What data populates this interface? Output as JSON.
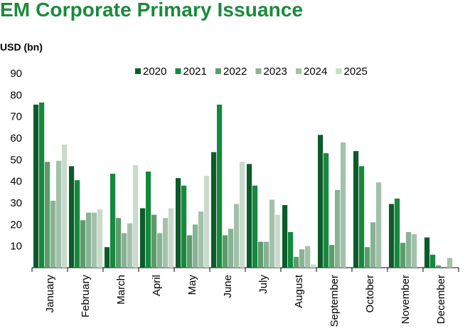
{
  "chart_data": {
    "type": "bar",
    "title": "EM Corporate Primary Issuance",
    "ylabel": "USD (bn)",
    "xlabel": "",
    "ylim": [
      0,
      90
    ],
    "yticks": [
      10,
      20,
      30,
      40,
      50,
      60,
      70,
      80,
      90
    ],
    "grid": false,
    "legend_position": "top-right",
    "categories": [
      "January",
      "February",
      "March",
      "April",
      "May",
      "June",
      "July",
      "August",
      "September",
      "October",
      "November",
      "December"
    ],
    "series": [
      {
        "name": "2020",
        "color": "#0d5a2a",
        "values": [
          75.5,
          47,
          9.5,
          27.5,
          41.5,
          53.5,
          48,
          29,
          61.5,
          54,
          29.5,
          14
        ]
      },
      {
        "name": "2021",
        "color": "#15893e",
        "values": [
          76.5,
          40.5,
          43.5,
          44.5,
          38,
          75.5,
          38,
          16.5,
          53,
          47,
          32,
          6
        ]
      },
      {
        "name": "2022",
        "color": "#5c9c6b",
        "values": [
          49,
          22,
          23,
          24.5,
          15,
          15,
          12,
          5,
          10.5,
          9.5,
          11.5,
          1
        ]
      },
      {
        "name": "2023",
        "color": "#88b294",
        "values": [
          31,
          25.5,
          16,
          16,
          20,
          18,
          12,
          8.5,
          36,
          21,
          16.5,
          0
        ]
      },
      {
        "name": "2024",
        "color": "#a3c1aa",
        "values": [
          49.5,
          25.5,
          20.5,
          23,
          26,
          29.5,
          31.5,
          10,
          58,
          39.5,
          15.5,
          4.5
        ]
      },
      {
        "name": "2025",
        "color": "#c9dbcc",
        "values": [
          57,
          27,
          47.5,
          27.5,
          42.5,
          49,
          24.5,
          1.5,
          null,
          null,
          null,
          null
        ]
      }
    ]
  }
}
